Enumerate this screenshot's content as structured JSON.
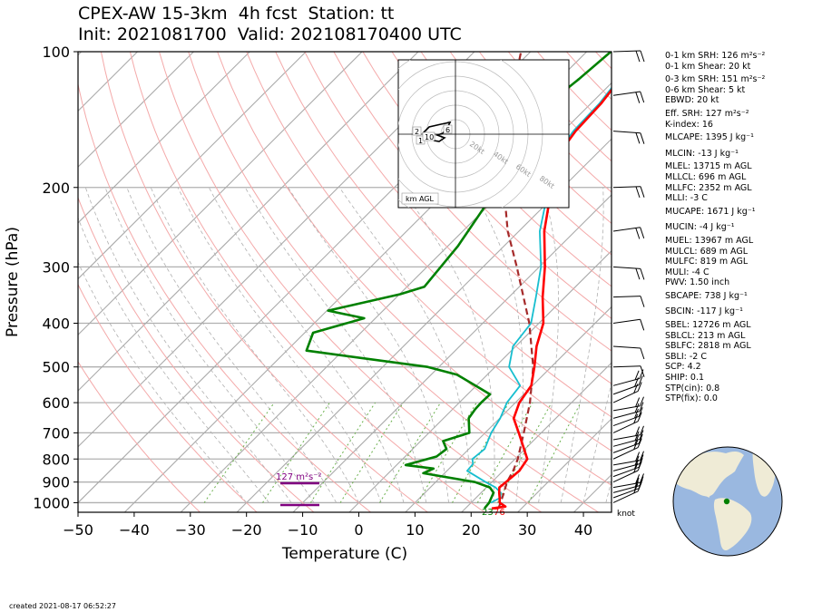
{
  "title": {
    "line1": "CPEX-AW 15-3km  4h fcst  Station: tt",
    "line2": "Init: 2021081700  Valid: 202108170400 UTC"
  },
  "footer": {
    "created": "created 2021-08-17 06:52:27"
  },
  "stats_panel": [
    "0-1 km SRH: 126 m²s⁻²",
    "0-1 km Shear: 20 kt",
    "0-3 km SRH: 151 m²s⁻²",
    "0-6 km Shear: 5 kt",
    "EBWD: 20 kt",
    "Eff. SRH: 127 m²s⁻²",
    "K-index: 16",
    "MLCAPE: 1395 J kg⁻¹",
    "MLCIN: -13 J kg⁻¹",
    "MLEL: 13715 m AGL",
    "MLLCL: 696 m AGL",
    "MLLFC: 2352 m AGL",
    "MLLI: -3 C",
    "MUCAPE: 1671 J kg⁻¹",
    "MUCIN: -4 J kg⁻¹",
    "MUEL: 13967 m AGL",
    "MULCL: 689 m AGL",
    "MULFC: 819 m AGL",
    "MULI: -4 C",
    "PWV: 1.50 inch",
    "SBCAPE: 738 J kg⁻¹",
    "SBCIN: -117 J kg⁻¹",
    "SBEL: 12726 m AGL",
    "SBLCL: 213 m AGL",
    "SBLFC: 2818 m AGL",
    "SBLI: -2 C",
    "SCP: 4.2",
    "SHIP: 0.1",
    "STP(cin): 0.8",
    "STP(fix): 0.0"
  ],
  "chart_data": [
    {
      "type": "line",
      "subtype": "skew-T log-P",
      "xlabel": "Temperature (C)",
      "ylabel": "Pressure (hPa)",
      "xlim": [
        -50,
        45
      ],
      "ylim": [
        1050,
        100
      ],
      "y_scale": "log",
      "x_ticks": [
        -50,
        -40,
        -30,
        -20,
        -10,
        0,
        10,
        20,
        30,
        40
      ],
      "y_ticks": [
        100,
        200,
        300,
        400,
        500,
        600,
        700,
        800,
        900,
        1000
      ],
      "grid": true,
      "colors": {
        "temperature": "#ff0000",
        "dewpoint": "#008000",
        "wetbulb": "#17becf",
        "parcel": "#a52a2a",
        "srh_marker": "#800080",
        "dry_adiabats": "#f4a9a9",
        "moist_adiabats": "#b0b0b0",
        "mixing_ratio": "#6ab04c",
        "isotherms": "#aaaaaa"
      },
      "series": [
        {
          "key": "temperature",
          "points": [
            [
              1030,
              24.7
            ],
            [
              1020,
              26.8
            ],
            [
              1000,
              25.1
            ],
            [
              975,
              24.2
            ],
            [
              950,
              23.2
            ],
            [
              925,
              22.3
            ],
            [
              900,
              22.5
            ],
            [
              850,
              22.9
            ],
            [
              800,
              22.2
            ],
            [
              700,
              16.0
            ],
            [
              650,
              12.5
            ],
            [
              600,
              10.7
            ],
            [
              550,
              9.8
            ],
            [
              500,
              7.0
            ],
            [
              450,
              3.7
            ],
            [
              400,
              0.8
            ],
            [
              350,
              -4.0
            ],
            [
              300,
              -9.0
            ],
            [
              250,
              -15.5
            ],
            [
              200,
              -22.0
            ],
            [
              170,
              -26.6
            ],
            [
              150,
              -27.8
            ],
            [
              130,
              -28.2
            ],
            [
              100,
              -30.3
            ]
          ]
        },
        {
          "key": "wetbulb",
          "points": [
            [
              1000,
              23.5
            ],
            [
              975,
              24.3
            ],
            [
              950,
              23.5
            ],
            [
              925,
              21.6
            ],
            [
              900,
              18.9
            ],
            [
              850,
              13.6
            ],
            [
              820,
              13.4
            ],
            [
              800,
              12.4
            ],
            [
              760,
              12.8
            ],
            [
              700,
              11.1
            ],
            [
              650,
              10.1
            ],
            [
              600,
              8.5
            ],
            [
              550,
              7.8
            ],
            [
              500,
              2.5
            ],
            [
              450,
              -0.5
            ],
            [
              400,
              -1.4
            ],
            [
              350,
              -5.2
            ],
            [
              300,
              -9.7
            ],
            [
              250,
              -16.3
            ],
            [
              200,
              -22.5
            ],
            [
              170,
              -27.0
            ],
            [
              150,
              -28.2
            ],
            [
              130,
              -28.5
            ],
            [
              100,
              -30.5
            ]
          ]
        },
        {
          "key": "dewpoint",
          "points": [
            [
              1030,
              23.4
            ],
            [
              1000,
              23.2
            ],
            [
              950,
              22.2
            ],
            [
              925,
              20.6
            ],
            [
              900,
              17.0
            ],
            [
              860,
              6.2
            ],
            [
              840,
              7.2
            ],
            [
              825,
              1.6
            ],
            [
              790,
              5.6
            ],
            [
              760,
              6.0
            ],
            [
              730,
              4.0
            ],
            [
              700,
              7.2
            ],
            [
              650,
              4.5
            ],
            [
              620,
              4.0
            ],
            [
              600,
              3.9
            ],
            [
              575,
              4.0
            ],
            [
              520,
              -5.4
            ],
            [
              500,
              -12.0
            ],
            [
              460,
              -36.5
            ],
            [
              420,
              -38.5
            ],
            [
              390,
              -32.0
            ],
            [
              375,
              -39.8
            ],
            [
              345,
              -29.9
            ],
            [
              332,
              -26.9
            ],
            [
              270,
              -28.2
            ],
            [
              220,
              -30.5
            ],
            [
              198,
              -30.9
            ],
            [
              170,
              -34.4
            ],
            [
              140,
              -38.0
            ],
            [
              125,
              -37.2
            ],
            [
              115,
              -36.5
            ],
            [
              100,
              -35.7
            ]
          ]
        },
        {
          "key": "parcel",
          "points": [
            [
              1030,
              25.9
            ],
            [
              960,
              24.3
            ],
            [
              900,
              22.7
            ],
            [
              850,
              21.8
            ],
            [
              800,
              20.5
            ],
            [
              700,
              16.9
            ],
            [
              600,
              12.6
            ],
            [
              500,
              6.8
            ],
            [
              400,
              -1.7
            ],
            [
              300,
              -14.0
            ],
            [
              250,
              -22.0
            ],
            [
              200,
              -30.5
            ],
            [
              150,
              -40.5
            ],
            [
              100,
              -51.7
            ]
          ]
        }
      ],
      "annotations": [
        {
          "text": "127 m²s⁻²",
          "p": 880,
          "t": -15.0,
          "color": "#800080"
        },
        {
          "text": "23",
          "p": 1020,
          "t": 21.3,
          "color": "#008000"
        },
        {
          "text": "76",
          "p": 1020,
          "t": 24.5,
          "color": "#ff0000"
        },
        {
          "text": "knot",
          "p": 1038,
          "t": 44.8,
          "color": "#000000"
        }
      ],
      "srh_bars": [
        880,
        1000
      ]
    },
    {
      "type": "scatter",
      "subtype": "hodograph",
      "labels": [
        "2",
        "6",
        "1",
        "10"
      ],
      "rings_kt": [
        "20kt",
        "40kt",
        "60kt",
        "80kt"
      ],
      "legend": "km AGL"
    }
  ]
}
